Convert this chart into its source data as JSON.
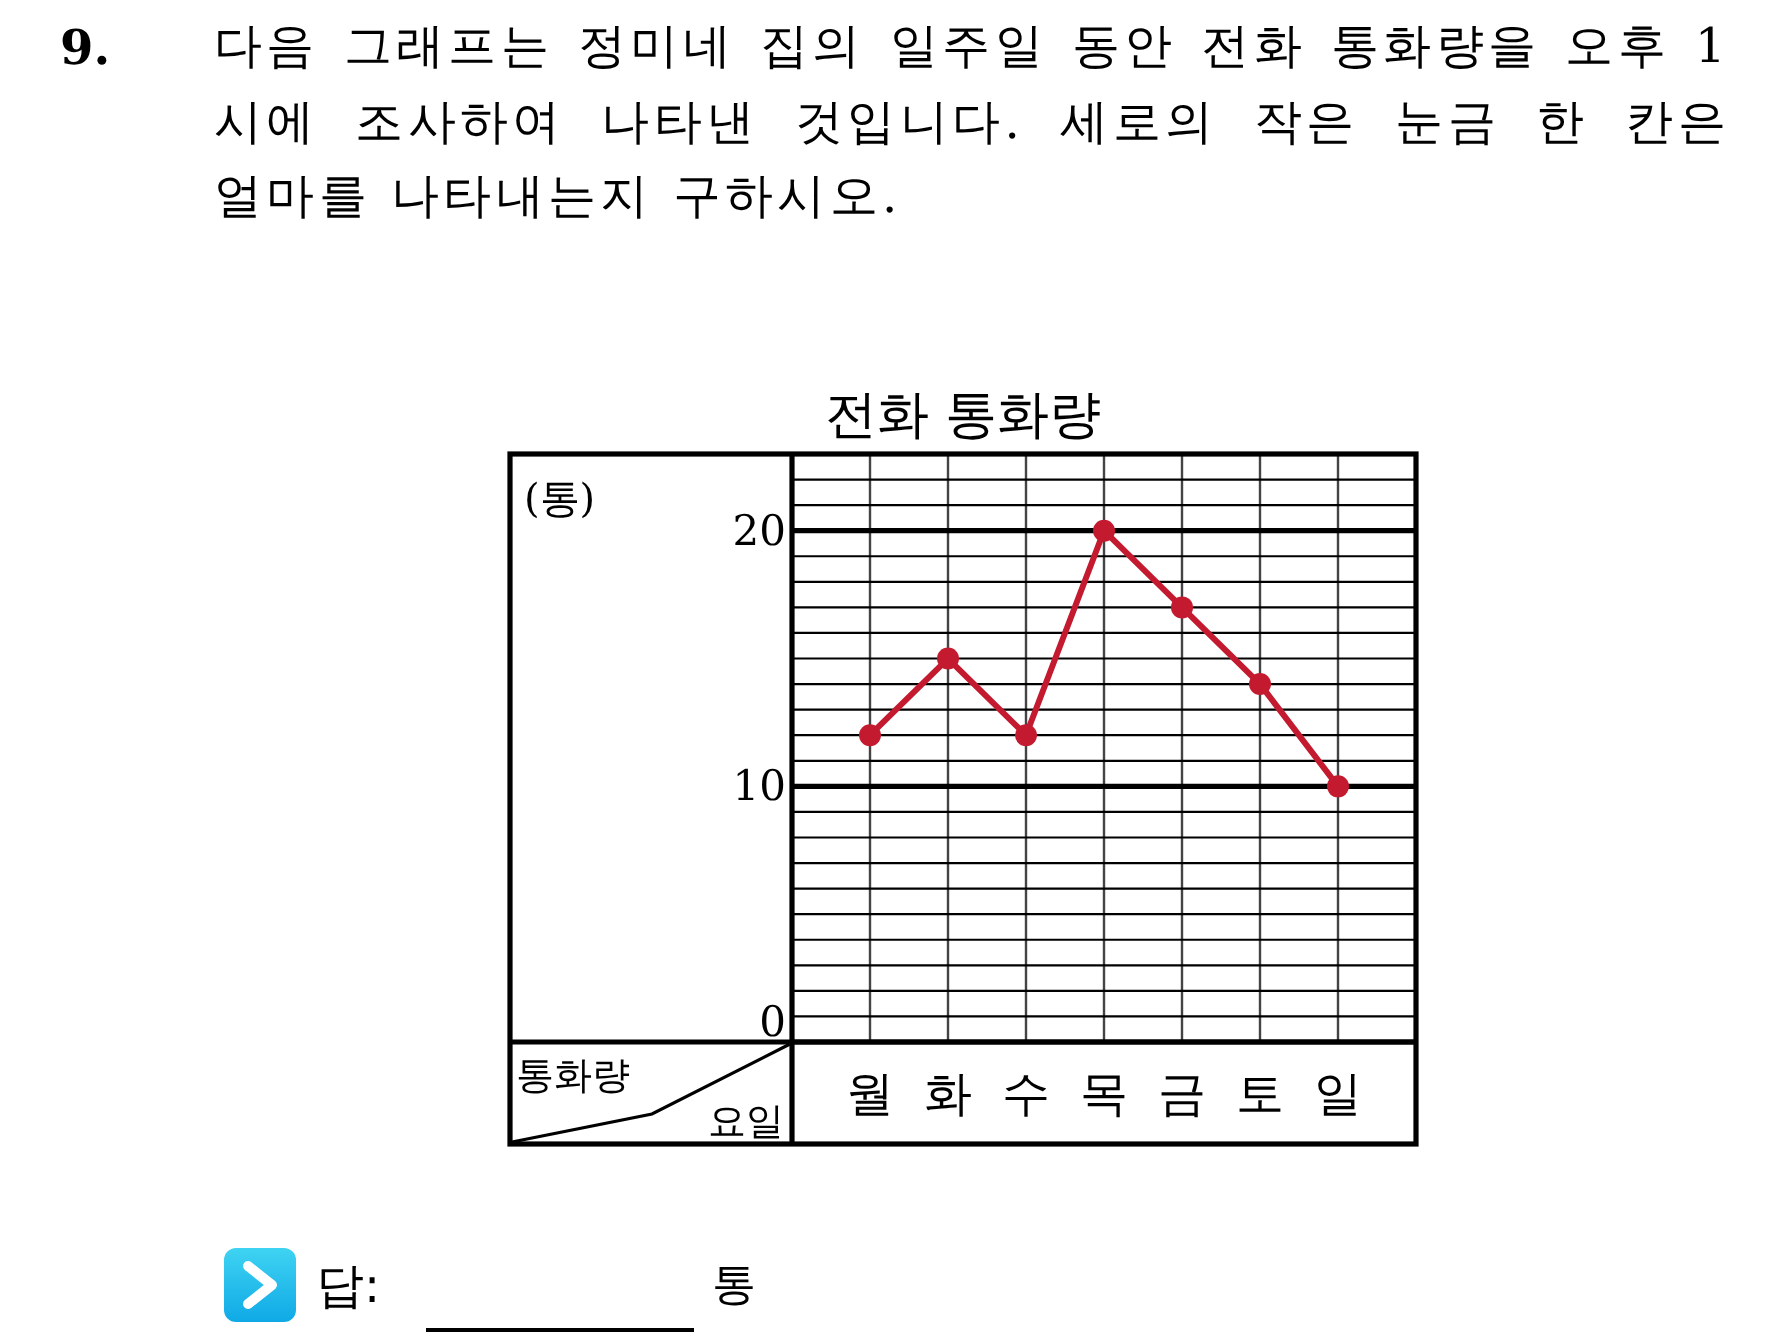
{
  "chart_data": {
    "type": "line",
    "title": "전화 통화량",
    "xlabel": "요일",
    "ylabel": "(통)",
    "categories": [
      "월",
      "화",
      "수",
      "목",
      "금",
      "토",
      "일"
    ],
    "series": [
      {
        "color": "#c41a30",
        "values": [
          12,
          15,
          12,
          20,
          17,
          14,
          10
        ]
      }
    ],
    "ylim": [
      0,
      23
    ],
    "yticks": [
      0,
      {
        "value": 1,
        "label": null
      },
      {
        "value": 2,
        "label": null
      },
      {
        "value": 3,
        "label": null
      },
      {
        "value": 4,
        "label": null
      },
      {
        "value": 5,
        "label": null
      },
      {
        "value": 6,
        "label": null
      },
      {
        "value": 7,
        "label": null
      },
      {
        "value": 8,
        "label": null
      },
      {
        "value": 9,
        "label": null
      },
      10,
      {
        "value": 11,
        "label": null
      },
      {
        "value": 12,
        "label": null
      },
      {
        "value": 13,
        "label": null
      },
      {
        "value": 14,
        "label": null
      },
      {
        "value": 15,
        "label": null
      },
      {
        "value": 16,
        "label": null
      },
      {
        "value": 17,
        "label": null
      },
      {
        "value": 18,
        "label": null
      },
      {
        "value": 19,
        "label": null
      },
      20,
      {
        "value": 21,
        "label": null
      },
      {
        "value": 22,
        "label": null
      }
    ],
    "grid": true,
    "marker": "circle",
    "line_style": "solid",
    "annotations": [
      "9.",
      "다음 그래프는 정미네 집의 일주일 동안 전화 통화량을 오후 1 시에 조사하여 나타낸 것입니다. 세로의 작은 눈금 한 칸은 얼마를 나타내는지 구하시오.",
      "통화량",
      "답:",
      "통"
    ]
  }
}
